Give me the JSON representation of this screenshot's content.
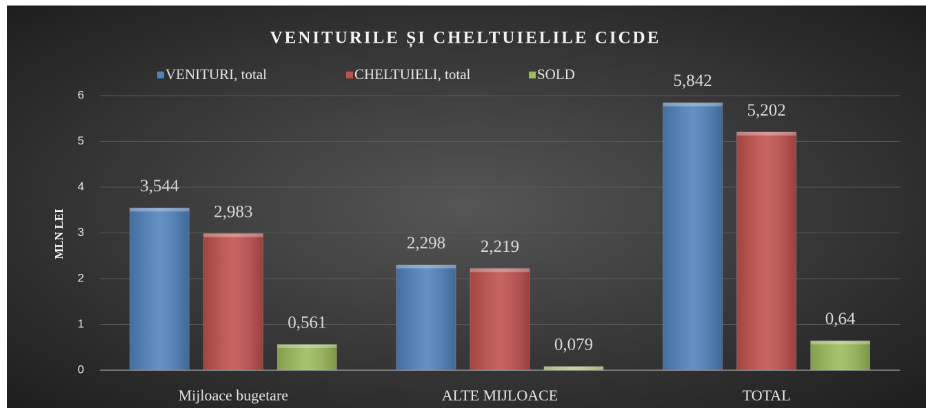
{
  "chart_data": {
    "type": "bar",
    "title": "VENITURILE ȘI CHELTUIELILE CICDE",
    "y_label": "MLN LEI",
    "categories": [
      "Mijloace bugetare",
      "ALTE MIJLOACE",
      "TOTAL"
    ],
    "series": [
      {
        "name": "VENITURI, total",
        "color": "#4f81bd",
        "values": [
          3.544,
          2.298,
          5.842
        ],
        "value_labels": [
          "3,544",
          "2,298",
          "5,842"
        ]
      },
      {
        "name": "CHELTUIELI, total",
        "color": "#c0504d",
        "values": [
          2.983,
          2.219,
          5.202
        ],
        "value_labels": [
          "2,983",
          "2,219",
          "5,202"
        ]
      },
      {
        "name": "SOLD",
        "color": "#9bbb59",
        "values": [
          0.561,
          0.079,
          0.64
        ],
        "value_labels": [
          "0,561",
          "0,079",
          "0,64"
        ]
      }
    ],
    "ylim": [
      0,
      6
    ],
    "yticks": [
      0,
      1,
      2,
      3,
      4,
      5,
      6
    ],
    "grid": true,
    "legend": "top"
  }
}
